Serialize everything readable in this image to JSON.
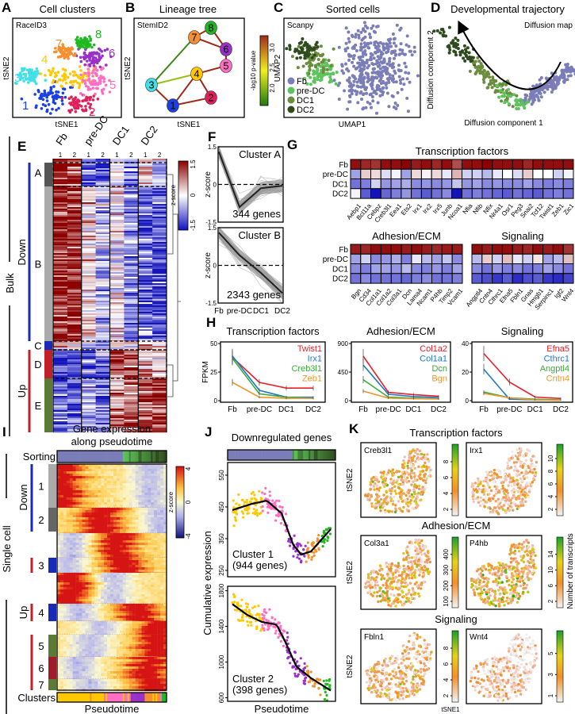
{
  "panel_a": {
    "letter": "A",
    "title": "Cell clusters",
    "method": "RaceID3",
    "xlabel": "tSNE1",
    "ylabel": "tSNE2",
    "clusters": [
      {
        "label": "1",
        "color": "#1a3fe6"
      },
      {
        "label": "2",
        "color": "#e0205a"
      },
      {
        "label": "3",
        "color": "#3fe0e8"
      },
      {
        "label": "4",
        "color": "#ffc800"
      },
      {
        "label": "5",
        "color": "#ff6ec4"
      },
      {
        "label": "6",
        "color": "#9a30c8"
      },
      {
        "label": "7",
        "color": "#f59030"
      },
      {
        "label": "8",
        "color": "#20b820"
      }
    ]
  },
  "panel_b": {
    "letter": "B",
    "title": "Lineage tree",
    "method": "StemID2",
    "xlabel": "tSNE1",
    "ylabel": "tSNE2",
    "colorbar_label": "-log10 p-value",
    "colorbar_ticks": [
      "3.0",
      "2.5",
      "2.0"
    ],
    "edges": [
      [
        "3",
        "7",
        1.6
      ],
      [
        "3",
        "4",
        2.0
      ],
      [
        "3",
        "1",
        3.2
      ],
      [
        "1",
        "4",
        3.2
      ],
      [
        "1",
        "2",
        3.2
      ],
      [
        "2",
        "4",
        3.2
      ],
      [
        "4",
        "5",
        3.2
      ],
      [
        "5",
        "6",
        3.2
      ],
      [
        "6",
        "7",
        3.2
      ],
      [
        "7",
        "8",
        3.2
      ],
      [
        "8",
        "6",
        3.2
      ]
    ]
  },
  "panel_c": {
    "letter": "C",
    "title": "Sorted cells",
    "method": "Scanpy",
    "xlabel": "UMAP1",
    "ylabel": "UMAP2",
    "legend": [
      {
        "label": "Fb",
        "color": "#7b7db8"
      },
      {
        "label": "pre-DC",
        "color": "#5cc45a"
      },
      {
        "label": "DC1",
        "color": "#6a8c3c"
      },
      {
        "label": "DC2",
        "color": "#2f4a1e"
      }
    ]
  },
  "panel_d": {
    "letter": "D",
    "title": "Developmental trajectory",
    "method": "Diffusion map",
    "xlabel": "Diffusion component 1",
    "ylabel": "Diffusion component 2"
  },
  "panel_e": {
    "letter": "E",
    "section": "Bulk",
    "groups": [
      "Fb",
      "pre-DC",
      "DC1",
      "DC2"
    ],
    "replicates": [
      "1",
      "2",
      "1",
      "2",
      "1",
      "2",
      "1",
      "2"
    ],
    "direction_labels": {
      "down": "Down",
      "up": "Up"
    },
    "clusters": [
      {
        "label": "A",
        "color": "#555555"
      },
      {
        "label": "B",
        "color": "#aaaaaa"
      },
      {
        "label": "C",
        "color": "#1a2ab8"
      },
      {
        "label": "D",
        "color": "#c0202a"
      },
      {
        "label": "E",
        "color": "#5a7a35"
      }
    ],
    "cluster_mean_zscores": {
      "A": [
        0.9,
        0.85,
        -0.6,
        -0.8,
        0.1,
        -0.5,
        0.3,
        -0.2
      ],
      "B": [
        0.9,
        0.85,
        0.1,
        -0.3,
        0.0,
        -0.5,
        -0.6,
        -0.7
      ],
      "C": [
        0.2,
        0.1,
        -0.2,
        -0.3,
        0.1,
        0.2,
        0.3,
        0.2
      ],
      "D": [
        -0.8,
        -0.8,
        -0.6,
        -0.5,
        0.7,
        0.6,
        0.3,
        0.2
      ],
      "E": [
        -0.7,
        -0.7,
        -0.3,
        -0.6,
        0.5,
        0.6,
        0.7,
        0.8
      ]
    },
    "colorbar_label": "z-score",
    "colorbar_ticks": [
      "1.5",
      "0",
      "-1.5"
    ]
  },
  "panel_g": {
    "letter": "G",
    "rows": [
      "Fb",
      "pre-DC",
      "DC1",
      "DC2"
    ],
    "heatmaps": [
      {
        "title": "Transcription factors",
        "genes": [
          "Aebp1",
          "Bcl11a",
          "Cebpz",
          "Creb3l1",
          "Eea1",
          "Ets2",
          "Irx1",
          "Irx2",
          "Irx5",
          "Junb",
          "Ncoa1",
          "Nfia",
          "Nfib",
          "Nfix",
          "Nr4a1",
          "Osr1",
          "Peg3",
          "Snai2",
          "Tcf12",
          "Twist1",
          "Zeb1",
          "Zic1"
        ],
        "values": [
          [
            0.95,
            0.85,
            0.8,
            0.95,
            0.95,
            1,
            0.9,
            0.95,
            0.85,
            0.95,
            0.7,
            0.95,
            0.95,
            1,
            0.95,
            0.95,
            0.95,
            0.85,
            0.95,
            0.95,
            0.95,
            0.95
          ],
          [
            -0.4,
            0.2,
            0.15,
            -0.15,
            -0.05,
            -0.4,
            0.15,
            0.05,
            0.15,
            -0.1,
            0.3,
            -0.2,
            -0.2,
            -0.3,
            -0.1,
            0,
            -0.15,
            0.2,
            0,
            0,
            -0.2,
            -0.05
          ],
          [
            -0.6,
            -0.55,
            -0.2,
            -0.45,
            -0.4,
            -0.35,
            -0.5,
            -0.45,
            -0.5,
            -0.45,
            -0.25,
            -0.45,
            -0.4,
            -0.5,
            -0.45,
            -0.5,
            -0.5,
            -0.4,
            -0.5,
            -0.55,
            -0.5,
            -0.55
          ],
          [
            -0.05,
            -0.7,
            -1,
            -0.65,
            -0.55,
            -0.45,
            -0.6,
            -0.7,
            -0.6,
            -0.5,
            -1,
            -0.6,
            -0.55,
            -0.6,
            -0.65,
            -0.7,
            -0.6,
            -0.65,
            -0.7,
            -0.6,
            -0.55,
            -0.6
          ]
        ]
      },
      {
        "title": "Adhesion/ECM",
        "genes": [
          "Bgn",
          "Cd34",
          "Col1a1",
          "Col1a2",
          "Col3a1",
          "Dcn",
          "Lama4",
          "Ncam1",
          "P4hb",
          "Timp2",
          "Vcam1"
        ],
        "values": [
          [
            0.9,
            0.85,
            0.95,
            0.95,
            0.95,
            0.9,
            0.95,
            0.9,
            0.85,
            0.9,
            0.9
          ],
          [
            -0.4,
            -0.2,
            -0.5,
            -0.45,
            -0.35,
            -0.55,
            -0.1,
            -0.3,
            -0.4,
            -0.25,
            -0.5
          ],
          [
            -0.5,
            -0.55,
            -0.4,
            -0.4,
            -0.45,
            -0.3,
            -0.5,
            -0.55,
            -0.45,
            -0.55,
            -0.4
          ],
          [
            -0.6,
            -0.5,
            -0.6,
            -0.6,
            -0.6,
            -0.65,
            -0.55,
            -0.5,
            -0.6,
            -0.6,
            -0.55
          ]
        ]
      },
      {
        "title": "Signaling",
        "genes": [
          "Angptl4",
          "Cntn4",
          "Cthrc1",
          "Efna5",
          "Fbln1",
          "Gnas",
          "Hmgb1",
          "Serpinc1",
          "Igf2",
          "Wnt4"
        ],
        "values": [
          [
            0.95,
            0.9,
            0.95,
            0.95,
            0.9,
            0.85,
            0.95,
            0.9,
            0.95,
            0.8
          ],
          [
            -0.3,
            0.2,
            -0.2,
            0.25,
            -0.1,
            -0.2,
            0.1,
            -0.4,
            -0.3,
            0.25
          ],
          [
            -0.5,
            -0.6,
            -0.45,
            -0.55,
            -0.5,
            -0.6,
            -0.55,
            -0.4,
            -0.5,
            -0.6
          ],
          [
            -0.7,
            -0.75,
            -0.85,
            -0.7,
            -0.9,
            -0.75,
            -0.7,
            -0.85,
            -0.9,
            -0.8
          ]
        ]
      }
    ]
  },
  "panel_i": {
    "letter": "I",
    "section": "Single cell",
    "title_line1": "Gene expression",
    "title_line2": "along pseudotime",
    "sorting_label": "Sorting",
    "clusters_label": "Clusters",
    "xlabel": "Pseudotime",
    "direction_labels": {
      "down": "Down",
      "up": "Up"
    },
    "clusters": [
      {
        "label": "1",
        "color": "#aaaaaa"
      },
      {
        "label": "2",
        "color": "#666666"
      },
      {
        "label": "3",
        "color": "#1a2ab8"
      },
      {
        "label": "4",
        "color": "#1a2ab8"
      },
      {
        "label": "5",
        "color": "#5a7a35"
      },
      {
        "label": "6",
        "color": "#a01c2c"
      },
      {
        "label": "7",
        "color": "#5a7a35"
      }
    ],
    "colorbar_label": "z-score",
    "colorbar_ticks": [
      "4",
      "0",
      "-4"
    ]
  },
  "panel_j": {
    "letter": "J",
    "title": "Downregulated genes",
    "xlabel": "Pseudotime",
    "ylabel": "Cumulative expression"
  },
  "panel_k": {
    "letter": "K",
    "xlabel": "tSNE1",
    "ylabel": "tSNE2",
    "colorbar_label": "Number of transcripts",
    "sections": [
      "Transcription factors",
      "Adhesion/ECM",
      "Signaling"
    ],
    "genes": [
      {
        "name": "Creb3l1",
        "ticks": [
          "2",
          "4",
          "6",
          "8"
        ],
        "level": 0.45
      },
      {
        "name": "Irx1",
        "ticks": [
          "2",
          "4",
          "6",
          "8",
          "10"
        ],
        "level": 0.3
      },
      {
        "name": "Col3a1",
        "ticks": [
          "100",
          "200",
          "300",
          "400"
        ],
        "level": 0.45
      },
      {
        "name": "P4hb",
        "ticks": [
          "2",
          "6",
          "10",
          "14"
        ],
        "level": 0.55
      },
      {
        "name": "Fbln1",
        "ticks": [
          "2",
          "4",
          "6",
          "8"
        ],
        "level": 0.3
      },
      {
        "name": "Wnt4",
        "ticks": [
          "1",
          "3",
          "5"
        ],
        "level": 0.15
      }
    ]
  },
  "chart_data": [
    {
      "id": "F-cluster-A",
      "panel": "F",
      "type": "line",
      "title": "Cluster A",
      "annotation": "344 genes",
      "ylabel": "z-score",
      "categories": [
        "Fb",
        "pre-DC",
        "DC1",
        "DC2"
      ],
      "ylim": [
        -1.5,
        1.5
      ],
      "yticks": [
        "1.5",
        "0",
        "-1.5"
      ],
      "mean": [
        1.3,
        -0.9,
        -0.15,
        -0.05
      ]
    },
    {
      "id": "F-cluster-B",
      "panel": "F",
      "type": "line",
      "title": "Cluster B",
      "annotation": "2343 genes",
      "ylabel": "z-score",
      "categories": [
        "Fb",
        "pre-DC",
        "DC1",
        "DC2"
      ],
      "ylim": [
        -1.5,
        1.5
      ],
      "yticks": [
        "1.5",
        "0",
        "-1.5"
      ],
      "mean": [
        1.3,
        0.4,
        -0.3,
        -1.1
      ]
    },
    {
      "id": "H-tf",
      "panel": "H",
      "type": "line",
      "title": "Transcription factors",
      "ylabel": "FPKM",
      "categories": [
        "Fb",
        "pre-DC",
        "DC1",
        "DC2"
      ],
      "ylim": [
        0,
        50
      ],
      "yticks": [
        "0",
        "25",
        "50"
      ],
      "series": [
        {
          "name": "Twist1",
          "color": "#e8202a",
          "values": [
            38,
            16,
            11,
            11
          ]
        },
        {
          "name": "Irx1",
          "color": "#1f78c8",
          "values": [
            39,
            9,
            3,
            3
          ]
        },
        {
          "name": "Creb3l1",
          "color": "#3aaa3a",
          "values": [
            37,
            6,
            3,
            2
          ]
        },
        {
          "name": "Zeb1",
          "color": "#f0962a",
          "values": [
            16,
            3,
            2,
            2
          ]
        }
      ]
    },
    {
      "id": "H-adh",
      "panel": "H",
      "type": "line",
      "title": "Adhesion/ECM",
      "ylabel": "",
      "categories": [
        "Fb",
        "pre-DC",
        "DC1",
        "DC2"
      ],
      "ylim": [
        0,
        900
      ],
      "yticks": [
        "0",
        "450",
        "900"
      ],
      "series": [
        {
          "name": "Col1a2",
          "color": "#e8202a",
          "values": [
            700,
            130,
            95,
            70
          ]
        },
        {
          "name": "Col1a1",
          "color": "#1f78c8",
          "values": [
            560,
            100,
            65,
            50
          ]
        },
        {
          "name": "Dcn",
          "color": "#3aaa3a",
          "values": [
            330,
            55,
            40,
            30
          ]
        },
        {
          "name": "Bgn",
          "color": "#f0962a",
          "values": [
            150,
            40,
            30,
            25
          ]
        }
      ]
    },
    {
      "id": "H-sig",
      "panel": "H",
      "type": "line",
      "title": "Signaling",
      "ylabel": "",
      "categories": [
        "Fb",
        "pre-DC",
        "DC1",
        "DC2"
      ],
      "ylim": [
        0,
        40
      ],
      "yticks": [
        "0",
        "20",
        "40"
      ],
      "series": [
        {
          "name": "Efna5",
          "color": "#e8202a",
          "values": [
            33,
            13,
            2.5,
            1.5
          ]
        },
        {
          "name": "Cthrc1",
          "color": "#1f78c8",
          "values": [
            22,
            1,
            0.5,
            0.3
          ]
        },
        {
          "name": "Angptl4",
          "color": "#3aaa3a",
          "values": [
            6,
            2,
            1,
            0.5
          ]
        },
        {
          "name": "Cntn4",
          "color": "#f0962a",
          "values": [
            5,
            2,
            0.5,
            0.3
          ]
        }
      ]
    },
    {
      "id": "J-cluster-1",
      "panel": "J",
      "type": "scatter",
      "title": "Cluster 1",
      "subtitle": "(944 genes)",
      "ylim": [
        230,
        590
      ],
      "yticks": [
        "250",
        "350",
        "450",
        "550"
      ],
      "trend": {
        "x": [
          0,
          0.2,
          0.35,
          0.5,
          0.62,
          0.7,
          0.8,
          1
        ],
        "y": [
          440,
          460,
          470,
          430,
          330,
          300,
          310,
          380
        ]
      }
    },
    {
      "id": "J-cluster-2",
      "panel": "J",
      "type": "scatter",
      "title": "Cluster 2",
      "subtitle": "(398 genes)",
      "ylim": [
        560,
        1850
      ],
      "yticks": [
        "600",
        "1000",
        "1400",
        "1800"
      ],
      "trend": {
        "x": [
          0,
          0.15,
          0.3,
          0.45,
          0.55,
          0.65,
          0.8,
          1
        ],
        "y": [
          1650,
          1530,
          1450,
          1420,
          1200,
          950,
          820,
          680
        ]
      }
    }
  ]
}
